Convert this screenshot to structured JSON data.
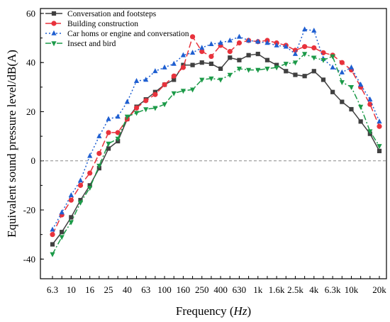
{
  "chart_data": {
    "type": "line",
    "xlabel_prefix": "Frequency  (",
    "xlabel_unit": "Hz",
    "xlabel_suffix": ")",
    "ylabel": "Equivalent sound pressure level/dB(A)",
    "ylim": [
      -48,
      62
    ],
    "yticks": [
      -40,
      -20,
      0,
      20,
      40,
      60
    ],
    "x_scale": "log",
    "x_labeled_ticks": [
      "6.3",
      "10",
      "16",
      "25",
      "40",
      "63",
      "100",
      "160",
      "250",
      "400",
      "630",
      "1k",
      "1.6k",
      "2.5k",
      "4k",
      "6.3k",
      "10k",
      "20k"
    ],
    "x_frequencies": [
      6.3,
      8,
      10,
      12.5,
      16,
      20,
      25,
      31.5,
      40,
      50,
      63,
      80,
      100,
      125,
      160,
      200,
      250,
      315,
      400,
      500,
      630,
      800,
      1000,
      1250,
      1600,
      2000,
      2500,
      3150,
      4000,
      5000,
      6300,
      8000,
      10000,
      12500,
      16000,
      20000
    ],
    "reference_line": 0,
    "legend_position": "top-left",
    "series": [
      {
        "name": "Conversation and footsteps",
        "color": "#404040",
        "dash": "solid",
        "marker": "square",
        "values": [
          -34,
          -29,
          -23,
          -16,
          -10,
          -3,
          5,
          8,
          17,
          22,
          25,
          28,
          31,
          33,
          39,
          39,
          40,
          39.5,
          37.5,
          42,
          41,
          43,
          43.5,
          41,
          39,
          36.5,
          35,
          34.5,
          36.5,
          33,
          28,
          24,
          21,
          16,
          11,
          4
        ]
      },
      {
        "name": "Building construction",
        "color": "#e8323c",
        "dash": "long-dash",
        "marker": "circle",
        "values": [
          -30,
          -22,
          -16,
          -10,
          -5,
          3,
          11.5,
          11.5,
          17,
          21.5,
          24.5,
          27,
          31,
          34.5,
          38,
          50.5,
          44.5,
          42.5,
          47,
          44.5,
          48,
          49,
          48.5,
          49,
          48,
          47,
          45,
          46.5,
          46,
          44,
          43,
          40,
          37,
          30,
          23,
          14
        ]
      },
      {
        "name": "Car homs or engine and conversation",
        "color": "#1f5fd1",
        "dash": "dotted",
        "marker": "triangle-up",
        "values": [
          -28,
          -21,
          -14,
          -8,
          2,
          10,
          17,
          18,
          24,
          32.5,
          33,
          36.5,
          38,
          39.5,
          43,
          44,
          46,
          47.5,
          48,
          49,
          50.5,
          49,
          48.5,
          48,
          47,
          46.5,
          43.5,
          53.5,
          53,
          41.5,
          38,
          36,
          38,
          31,
          25,
          16
        ]
      },
      {
        "name": "Insect and bird",
        "color": "#1c9a48",
        "dash": "dash-dot",
        "marker": "triangle-down",
        "values": [
          -38,
          -31,
          -25,
          -17,
          -11,
          -2,
          7,
          9,
          18,
          19.5,
          21,
          21.5,
          23,
          27.5,
          28.5,
          29,
          33,
          33.5,
          33,
          35,
          37.5,
          37,
          37,
          37.5,
          38,
          39.5,
          40,
          43.5,
          42,
          41,
          42.5,
          32,
          30,
          22,
          12,
          6
        ]
      }
    ]
  }
}
